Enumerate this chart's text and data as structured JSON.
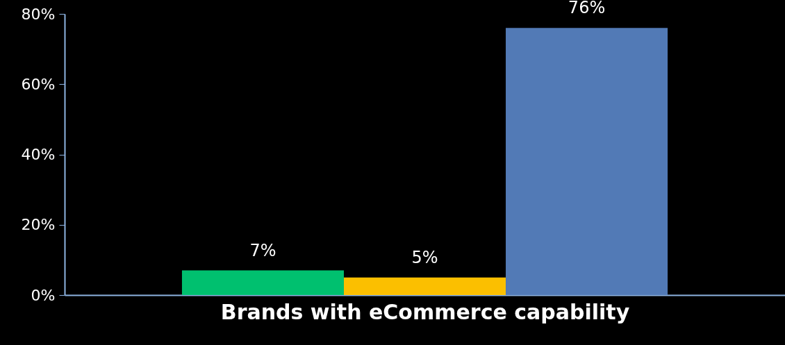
{
  "chart_data": {
    "type": "bar",
    "xlabel": "Brands with eCommerce capability",
    "categories": [
      null,
      null,
      null
    ],
    "values": [
      7,
      5,
      76
    ],
    "colors": [
      "#00c06f",
      "#fbbf00",
      "#527ab6"
    ],
    "value_labels": [
      "7%",
      "5%",
      "76%"
    ],
    "ylim": [
      0,
      80
    ],
    "yticks": [
      {
        "value": 0,
        "label": "0%"
      },
      {
        "value": 20,
        "label": "20%"
      },
      {
        "value": 40,
        "label": "40%"
      },
      {
        "value": 60,
        "label": "60%"
      },
      {
        "value": 80,
        "label": "80%"
      }
    ],
    "grid": false
  }
}
